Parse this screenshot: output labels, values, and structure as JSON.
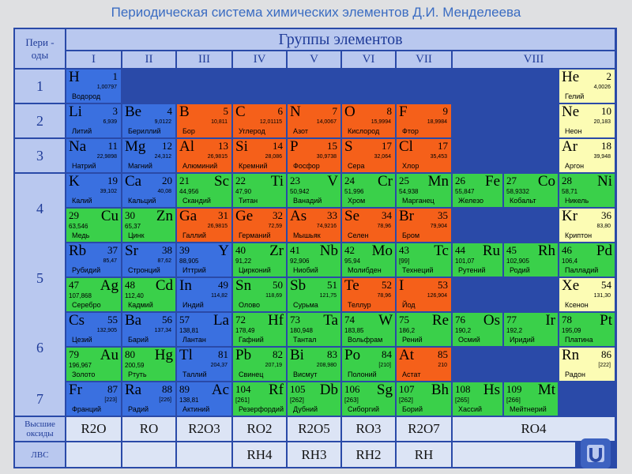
{
  "title": "Периодическая система химических элементов Д.И. Менделеева",
  "header": {
    "periods": "Пери - оды",
    "groups": "Группы элементов",
    "group_labels": [
      "I",
      "II",
      "III",
      "IV",
      "V",
      "VI",
      "VII",
      "VIII"
    ],
    "period_labels": [
      "1",
      "2",
      "3",
      "4",
      "5",
      "6",
      "7"
    ],
    "oxides_label": "Высшие оксиды",
    "lvs_label": "ЛВС"
  },
  "oxides": [
    "R2O",
    "RO",
    "R2O3",
    "RO2",
    "R2O5",
    "RO3",
    "R2O7",
    "RO4"
  ],
  "hydrides": [
    "RH4",
    "RH3",
    "RH2",
    "RH"
  ],
  "elements": [
    {
      "sym": "H",
      "num": "1",
      "mass": "1,00797",
      "name": "Водород"
    },
    {
      "sym": "He",
      "num": "2",
      "mass": "4,0026",
      "name": "Гелий"
    },
    {
      "sym": "Li",
      "num": "3",
      "mass": "6,939",
      "name": "Литий"
    },
    {
      "sym": "Be",
      "num": "4",
      "mass": "9,0122",
      "name": "Бериллий"
    },
    {
      "sym": "B",
      "num": "5",
      "mass": "10,811",
      "name": "Бор"
    },
    {
      "sym": "C",
      "num": "6",
      "mass": "12,01115",
      "name": "Углерод"
    },
    {
      "sym": "N",
      "num": "7",
      "mass": "14,0067",
      "name": "Азот"
    },
    {
      "sym": "O",
      "num": "8",
      "mass": "15,9994",
      "name": "Кислород"
    },
    {
      "sym": "F",
      "num": "9",
      "mass": "18,9984",
      "name": "Фтор"
    },
    {
      "sym": "Ne",
      "num": "10",
      "mass": "20,183",
      "name": "Неон"
    },
    {
      "sym": "Na",
      "num": "11",
      "mass": "22,9898",
      "name": "Натрий"
    },
    {
      "sym": "Mg",
      "num": "12",
      "mass": "24,312",
      "name": "Магний"
    },
    {
      "sym": "Al",
      "num": "13",
      "mass": "26,9815",
      "name": "Алюминий"
    },
    {
      "sym": "Si",
      "num": "14",
      "mass": "28,086",
      "name": "Кремний"
    },
    {
      "sym": "P",
      "num": "15",
      "mass": "30,9738",
      "name": "Фосфор"
    },
    {
      "sym": "S",
      "num": "17",
      "mass": "32,064",
      "name": "Сера"
    },
    {
      "sym": "Cl",
      "num": "17",
      "mass": "35,453",
      "name": "Хлор"
    },
    {
      "sym": "Ar",
      "num": "18",
      "mass": "39,948",
      "name": "Аргон"
    },
    {
      "sym": "K",
      "num": "19",
      "mass": "39,102",
      "name": "Калий"
    },
    {
      "sym": "Ca",
      "num": "20",
      "mass": "40,08",
      "name": "Кальций"
    },
    {
      "sym": "Sc",
      "num": "21",
      "mass": "44,956",
      "name": "Скандий"
    },
    {
      "sym": "Ti",
      "num": "22",
      "mass": "47,90",
      "name": "Титан"
    },
    {
      "sym": "V",
      "num": "23",
      "mass": "50,942",
      "name": "Ванадий"
    },
    {
      "sym": "Cr",
      "num": "24",
      "mass": "51,996",
      "name": "Хром"
    },
    {
      "sym": "Mn",
      "num": "25",
      "mass": "54,938",
      "name": "Марганец"
    },
    {
      "sym": "Fe",
      "num": "26",
      "mass": "55,847",
      "name": "Железо"
    },
    {
      "sym": "Co",
      "num": "27",
      "mass": "58,9332",
      "name": "Кобальт"
    },
    {
      "sym": "Ni",
      "num": "28",
      "mass": "58,71",
      "name": "Никель"
    },
    {
      "sym": "Cu",
      "num": "29",
      "mass": "63,546",
      "name": "Медь"
    },
    {
      "sym": "Zn",
      "num": "30",
      "mass": "65,37",
      "name": "Цинк"
    },
    {
      "sym": "Ga",
      "num": "31",
      "mass": "26,9815",
      "name": "Галлий"
    },
    {
      "sym": "Ge",
      "num": "32",
      "mass": "72,59",
      "name": "Германий"
    },
    {
      "sym": "As",
      "num": "33",
      "mass": "74,9216",
      "name": "Мышьяк"
    },
    {
      "sym": "Se",
      "num": "34",
      "mass": "78,96",
      "name": "Селен"
    },
    {
      "sym": "Br",
      "num": "35",
      "mass": "79,904",
      "name": "Бром"
    },
    {
      "sym": "Kr",
      "num": "36",
      "mass": "83,80",
      "name": "Криптон"
    },
    {
      "sym": "Rb",
      "num": "37",
      "mass": "85,47",
      "name": "Рубидий"
    },
    {
      "sym": "Sr",
      "num": "38",
      "mass": "87,62",
      "name": "Стронций"
    },
    {
      "sym": "Y",
      "num": "39",
      "mass": "88,905",
      "name": "Иттрий"
    },
    {
      "sym": "Zr",
      "num": "40",
      "mass": "91,22",
      "name": "Цирконий"
    },
    {
      "sym": "Nb",
      "num": "41",
      "mass": "92,906",
      "name": "Ниобий"
    },
    {
      "sym": "Mo",
      "num": "42",
      "mass": "95,94",
      "name": "Молибден"
    },
    {
      "sym": "Tc",
      "num": "43",
      "mass": "[99]",
      "name": "Технеций"
    },
    {
      "sym": "Ru",
      "num": "44",
      "mass": "101,07",
      "name": "Рутений"
    },
    {
      "sym": "Rh",
      "num": "45",
      "mass": "102,905",
      "name": "Родий"
    },
    {
      "sym": "Pd",
      "num": "46",
      "mass": "106,4",
      "name": "Палладий"
    },
    {
      "sym": "Ag",
      "num": "47",
      "mass": "107,868",
      "name": "Серебро"
    },
    {
      "sym": "Cd",
      "num": "48",
      "mass": "112,40",
      "name": "Кадмий"
    },
    {
      "sym": "In",
      "num": "49",
      "mass": "114,82",
      "name": "Индий"
    },
    {
      "sym": "Sn",
      "num": "50",
      "mass": "118,69",
      "name": "Олово"
    },
    {
      "sym": "Sb",
      "num": "51",
      "mass": "121,75",
      "name": "Сурьма"
    },
    {
      "sym": "Te",
      "num": "52",
      "mass": "78,96",
      "name": "Теллур"
    },
    {
      "sym": "I",
      "num": "53",
      "mass": "126,904",
      "name": "Йод"
    },
    {
      "sym": "Xe",
      "num": "54",
      "mass": "131,30",
      "name": "Ксенон"
    },
    {
      "sym": "Cs",
      "num": "55",
      "mass": "132,905",
      "name": "Цезий"
    },
    {
      "sym": "Ba",
      "num": "56",
      "mass": "137,34",
      "name": "Барий"
    },
    {
      "sym": "La",
      "num": "57",
      "mass": "138,81",
      "name": "Лантан"
    },
    {
      "sym": "Hf",
      "num": "72",
      "mass": "178,49",
      "name": "Гафний"
    },
    {
      "sym": "Ta",
      "num": "73",
      "mass": "180,948",
      "name": "Тантал"
    },
    {
      "sym": "W",
      "num": "74",
      "mass": "183,85",
      "name": "Вольфрам"
    },
    {
      "sym": "Re",
      "num": "75",
      "mass": "186,2",
      "name": "Рений"
    },
    {
      "sym": "Os",
      "num": "76",
      "mass": "190,2",
      "name": "Осмий"
    },
    {
      "sym": "Ir",
      "num": "77",
      "mass": "192,2",
      "name": "Иридий"
    },
    {
      "sym": "Pt",
      "num": "78",
      "mass": "195,09",
      "name": "Платина"
    },
    {
      "sym": "Au",
      "num": "79",
      "mass": "196,967",
      "name": "Золото"
    },
    {
      "sym": "Hg",
      "num": "80",
      "mass": "200,59",
      "name": "Ртуть"
    },
    {
      "sym": "Tl",
      "num": "81",
      "mass": "204,37",
      "name": "Таллий"
    },
    {
      "sym": "Pb",
      "num": "82",
      "mass": "207,19",
      "name": "Свинец"
    },
    {
      "sym": "Bi",
      "num": "83",
      "mass": "208,980",
      "name": "Висмут"
    },
    {
      "sym": "Po",
      "num": "84",
      "mass": "[210]",
      "name": "Полоний"
    },
    {
      "sym": "At",
      "num": "85",
      "mass": "210",
      "name": "Астат"
    },
    {
      "sym": "Rn",
      "num": "86",
      "mass": "[222]",
      "name": "Радон"
    },
    {
      "sym": "Fr",
      "num": "87",
      "mass": "[223]",
      "name": "Франций"
    },
    {
      "sym": "Ra",
      "num": "88",
      "mass": "[226]",
      "name": "Радий"
    },
    {
      "sym": "Ac",
      "num": "89",
      "mass": "138,81",
      "name": "Актиний"
    },
    {
      "sym": "Rf",
      "num": "104",
      "mass": "[261]",
      "name": "Резерфордий"
    },
    {
      "sym": "Db",
      "num": "105",
      "mass": "[262]",
      "name": "Дубний"
    },
    {
      "sym": "Sg",
      "num": "106",
      "mass": "[263]",
      "name": "Сиборгий"
    },
    {
      "sym": "Bh",
      "num": "107",
      "mass": "[262]",
      "name": "Борий"
    },
    {
      "sym": "Hs",
      "num": "108",
      "mass": "[265]",
      "name": "Хассий"
    },
    {
      "sym": "Mt",
      "num": "109",
      "mass": "[266]",
      "name": "Мейтнерий"
    }
  ],
  "colors": {
    "s": "#3a70e0",
    "p": "#f5601a",
    "d": "#3ad04a",
    "noble": "#fcfcb4",
    "header": "#b9c8ef",
    "frame": "#2a4aa8"
  }
}
